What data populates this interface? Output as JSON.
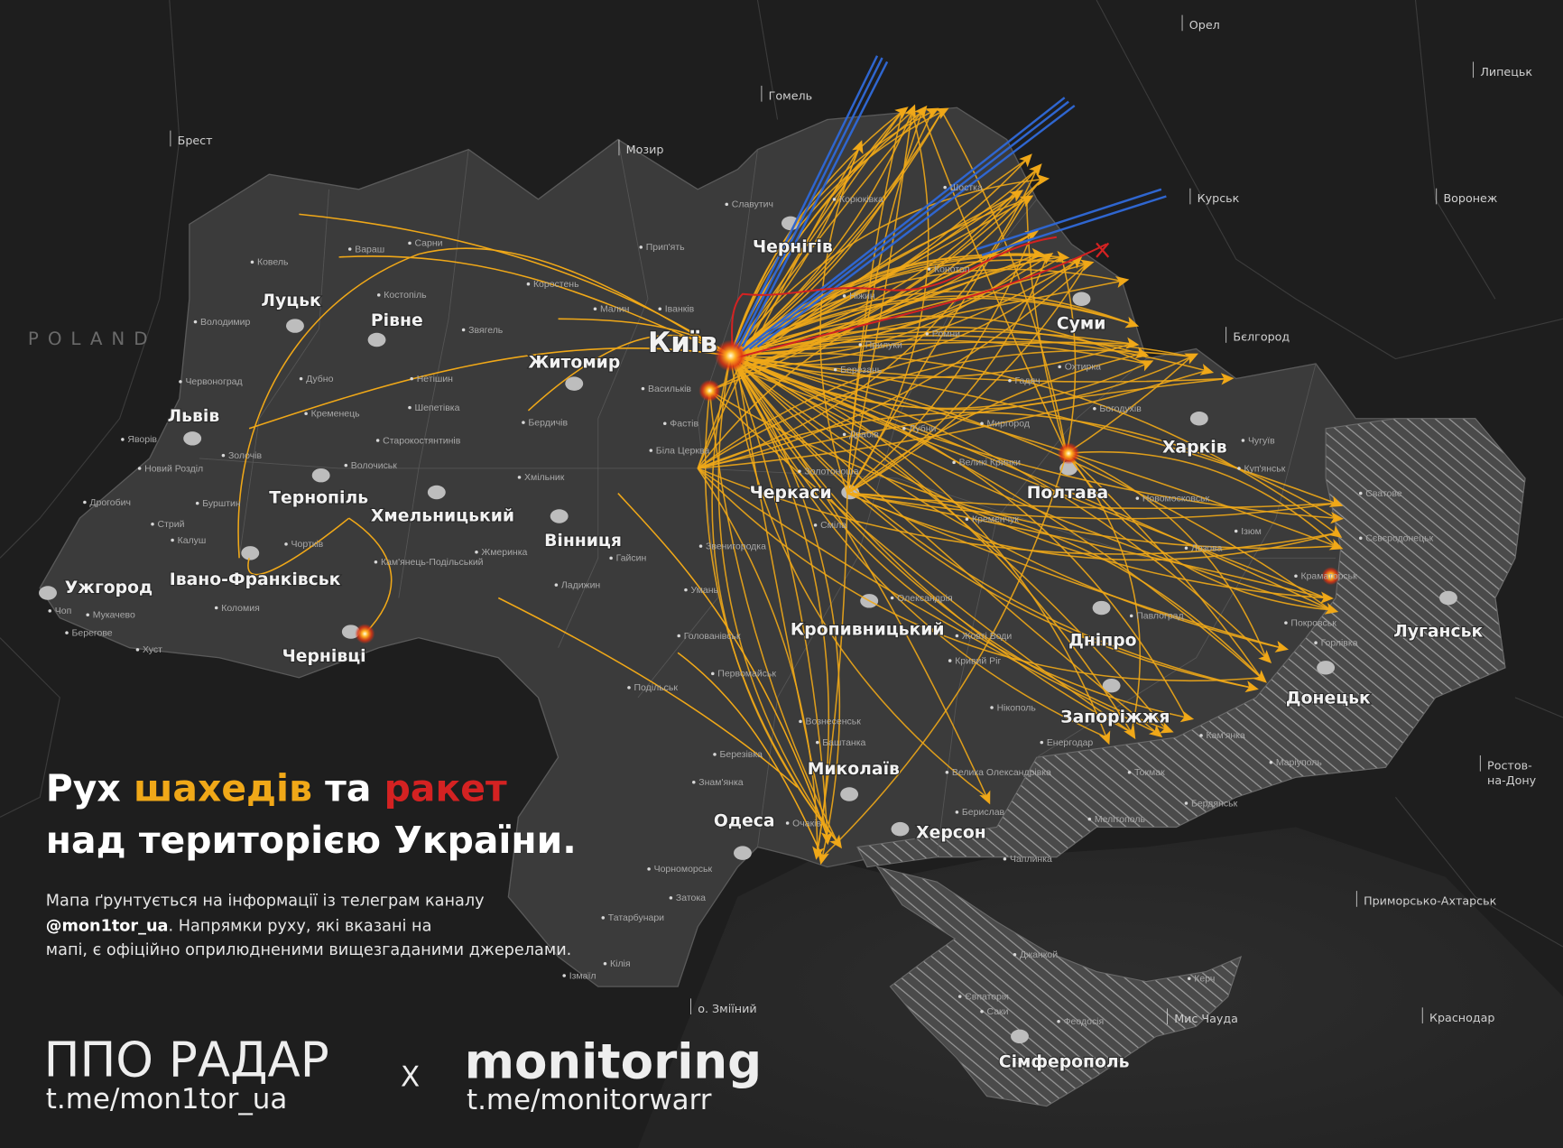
{
  "title": {
    "line1": [
      "Рух ",
      "шахедів",
      " та ",
      "ракет"
    ],
    "line2": "над територією України."
  },
  "description": {
    "line1": "Мапа ґрунтується на інформації із телеграм каналу",
    "line2_bold": "@mon1tor_ua",
    "line2_rest": ". Напрямки руху, які вказані на",
    "line3": "мапі, є офіційно оприлюдненими вищезгаданими джерелами."
  },
  "footer": {
    "brand1": "ППО РАДАР",
    "link1": "t.me/mon1tor_ua",
    "separator": "X",
    "brand2": "monitoring",
    "link2": "t.me/monitorwarr"
  },
  "country_label": "POLAND",
  "capital": "Київ",
  "major_cities": [
    "Луцьк",
    "Рівне",
    "Житомир",
    "Львів",
    "Тернопіль",
    "Хмельницький",
    "Вінниця",
    "Ужгород",
    "Івано-Франківськ",
    "Чернівці",
    "Чернігів",
    "Суми",
    "Харків",
    "Полтава",
    "Черкаси",
    "Кропивницький",
    "Дніпро",
    "Запоріжжя",
    "Донецьк",
    "Луганськ",
    "Миколаїв",
    "Одеса",
    "Херсон",
    "Сімферополь"
  ],
  "foreign_cities": [
    "Брест",
    "Мозир",
    "Гомель",
    "Орел",
    "Липецьк",
    "Курськ",
    "Воронеж",
    "Бєлгород",
    "Ростов-",
    "на-Дону",
    "Приморсько-Ахтарськ",
    "Краснодар",
    "Мис Чауда",
    "о. Зміїний"
  ],
  "minor_towns": [
    "Ковель",
    "Сарни",
    "Вараш",
    "Костопіль",
    "Володимир",
    "Червоноград",
    "Дубно",
    "Нетішин",
    "Кременець",
    "Шепетівка",
    "Старокостянтинів",
    "Яворів",
    "Новий Розділ",
    "Золочів",
    "Дрогобич",
    "Стрий",
    "Калуш",
    "Бурштин",
    "Волочиськ",
    "Чортків",
    "Кам'янець-Подільський",
    "Коломия",
    "Чоп",
    "Мукачево",
    "Берегове",
    "Хуст",
    "Коростень",
    "Малин",
    "Іванків",
    "Звягель",
    "Бердичів",
    "Хмільник",
    "Жмеринка",
    "Гайсин",
    "Ладижин",
    "Умань",
    "Біла Церква",
    "Фастів",
    "Васильків",
    "Прип'ять",
    "Славутич",
    "Корюківка",
    "Шостка",
    "Конотоп",
    "Ніжин",
    "Прилуки",
    "Ромни",
    "Охтирка",
    "Лубни",
    "Миргород",
    "Гадяч",
    "Богодухів",
    "Чугуїв",
    "Куп'янськ",
    "Ізюм",
    "Лозова",
    "Сватове",
    "Сєвєродонецьк",
    "Краматорськ",
    "Покровськ",
    "Горлівка",
    "Павлоград",
    "Новомосковськ",
    "Кривий Ріг",
    "Жовті Води",
    "Олександрія",
    "Кременчук",
    "Золотоноша",
    "Сміла",
    "Звенигородка",
    "Первомайськ",
    "Голованівськ",
    "Подільськ",
    "Вознесенськ",
    "Баштанка",
    "Березівка",
    "Знам'янка",
    "Очаків",
    "Нікополь",
    "Енергодар",
    "Кам'янка",
    "Токмак",
    "Маріуполь",
    "Бердянськ",
    "Мелітополь",
    "Чаплинка",
    "Джанкой",
    "Євпаторія",
    "Саки",
    "Феодосія",
    "Керч",
    "Берислав",
    "Велика Олександрівка",
    "Чорноморськ",
    "Затока",
    "Татарбунари",
    "Кілія",
    "Ізмаїл",
    "Березань",
    "Драбів",
    "Великі Кринки"
  ],
  "legend_colors": {
    "shahed_routes": "#f0a818",
    "missile_routes": "#d42222",
    "ballistic_routes": "#2f66d0"
  },
  "icons": {
    "explosion": "explosion-icon",
    "shahed_arrow": "triangle-arrowhead-icon"
  }
}
